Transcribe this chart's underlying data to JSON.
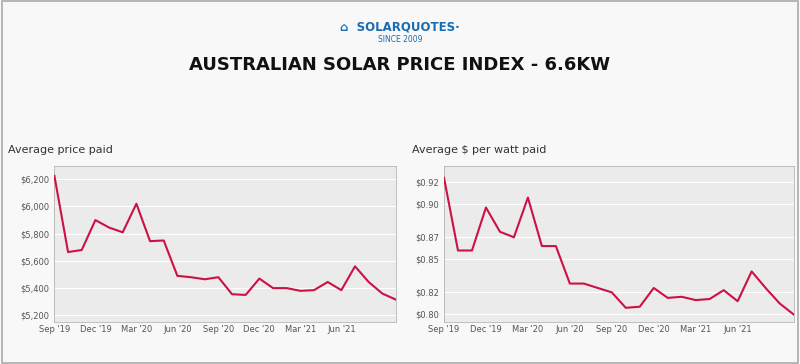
{
  "title": "AUSTRALIAN SOLAR PRICE INDEX - 6.6KW",
  "left_label": "Average price paid",
  "right_label": "Average $ per watt paid",
  "line_color": "#cc1144",
  "bg_color": "#f8f8f8",
  "plot_bg_color": "#ebebeb",
  "grid_color": "#ffffff",
  "border_color": "#aaaaaa",
  "label_color": "#333333",
  "tick_color": "#555555",
  "x_labels": [
    "Sep '19",
    "Dec '19",
    "Mar '20",
    "Jun '20",
    "Sep '20",
    "Dec '20",
    "Mar '21",
    "Jun '21"
  ],
  "left_y_ticks": [
    5200,
    5400,
    5600,
    5800,
    6000,
    6200
  ],
  "right_y_ticks": [
    0.8,
    0.82,
    0.85,
    0.87,
    0.9,
    0.92
  ],
  "left_ylim": [
    5150,
    6300
  ],
  "right_ylim": [
    0.793,
    0.935
  ],
  "left_data_y": [
    6225,
    5665,
    5680,
    5900,
    5845,
    5810,
    6020,
    5745,
    5750,
    5490,
    5480,
    5465,
    5480,
    5355,
    5350,
    5470,
    5400,
    5400,
    5380,
    5385,
    5445,
    5385,
    5560,
    5445,
    5360,
    5315
  ],
  "right_data_y": [
    0.924,
    0.858,
    0.858,
    0.897,
    0.875,
    0.87,
    0.906,
    0.862,
    0.862,
    0.828,
    0.828,
    0.824,
    0.82,
    0.806,
    0.807,
    0.824,
    0.815,
    0.816,
    0.813,
    0.814,
    0.822,
    0.812,
    0.839,
    0.824,
    0.81,
    0.8
  ],
  "x_tick_positions": [
    0,
    3,
    6,
    9,
    12,
    15,
    18,
    21
  ],
  "n_points": 26
}
